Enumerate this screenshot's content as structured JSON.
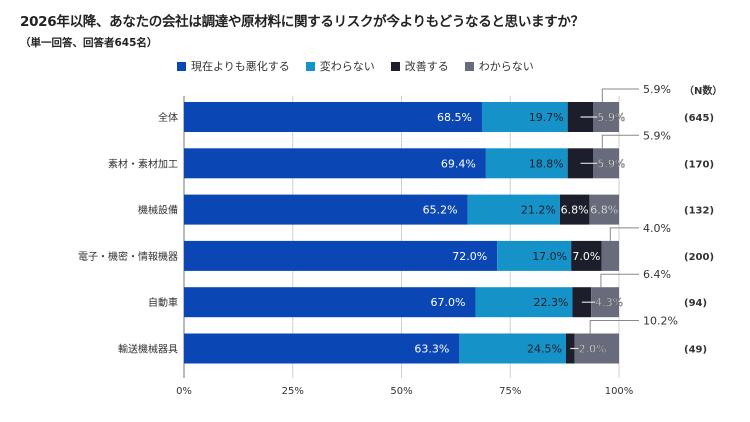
{
  "title": "2026年以降、あなたの会社は調達や原材料に関するリスクが今よりもどうなると思いますか？",
  "subtitle": "（単一回答、回答者645名）",
  "chart_data": {
    "type": "bar",
    "orientation": "horizontal",
    "stacked": true,
    "title": "2026年以降、あなたの会社は調達や原材料に関するリスクが今よりもどうなると思いますか？",
    "subtitle": "（単一回答、回答者645名）",
    "xlabel": "",
    "ylabel": "",
    "xlim": [
      0,
      100
    ],
    "x_ticks": [
      "0%",
      "25%",
      "50%",
      "75%",
      "100%"
    ],
    "grid": true,
    "legend_position": "top",
    "categories": [
      "全体",
      "素材・素材加工",
      "機械設備",
      "電子・機密・情報機器",
      "自動車",
      "輸送機械器具"
    ],
    "series": [
      {
        "name": "現在よりも悪化する",
        "color": "#0a47b5",
        "values": [
          68.5,
          69.4,
          65.2,
          72.0,
          67.0,
          63.3
        ]
      },
      {
        "name": "変わらない",
        "color": "#1593c9",
        "values": [
          19.7,
          18.8,
          21.2,
          17.0,
          22.3,
          24.5
        ]
      },
      {
        "name": "改善する",
        "color": "#1c1e2b",
        "values": [
          5.9,
          5.9,
          6.8,
          7.0,
          4.3,
          2.0
        ]
      },
      {
        "name": "わからない",
        "color": "#676b7b",
        "values": [
          5.9,
          5.9,
          6.8,
          4.0,
          6.4,
          10.2
        ]
      }
    ],
    "n_header": "（N数）",
    "n_values": [
      "(645)",
      "(170)",
      "(132)",
      "(200)",
      "(94)",
      "(49)"
    ]
  }
}
